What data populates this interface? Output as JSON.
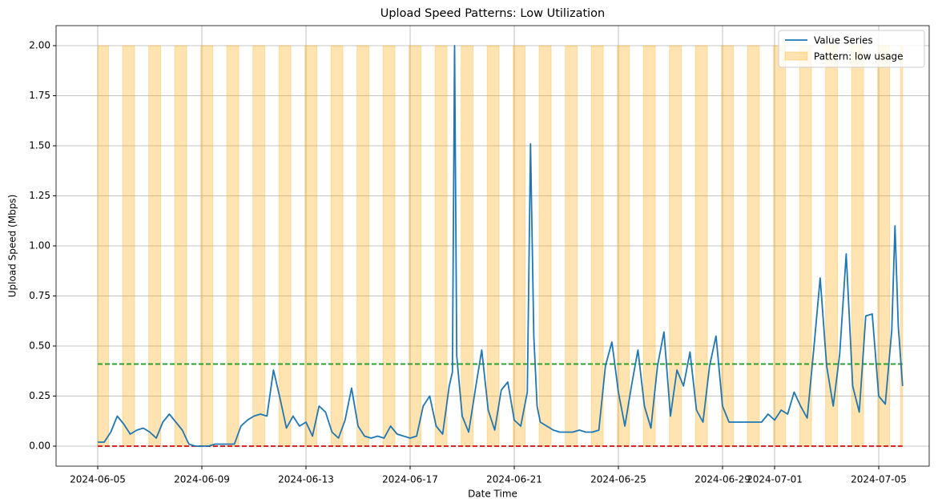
{
  "chart_data": {
    "type": "line",
    "title": "Upload Speed Patterns: Low Utilization",
    "xlabel": "Date Time",
    "ylabel": "Upload Speed (Mbps)",
    "xlim": [
      "2024-06-03T09:36",
      "2024-07-06T22:30"
    ],
    "ylim": [
      -0.1,
      2.1
    ],
    "xticks": [
      "2024-06-05",
      "2024-06-09",
      "2024-06-13",
      "2024-06-17",
      "2024-06-21",
      "2024-06-25",
      "2024-06-29",
      "2024-07-01",
      "2024-07-05"
    ],
    "yticks": [
      {
        "value": 0,
        "label": "0.00"
      },
      {
        "value": 0.25,
        "label": "0.25"
      },
      {
        "value": 0.5,
        "label": "0.50"
      },
      {
        "value": 0.75,
        "label": "0.75"
      },
      {
        "value": 1,
        "label": "1.00"
      },
      {
        "value": 1.25,
        "label": "1.25"
      },
      {
        "value": 1.5,
        "label": "1.50"
      },
      {
        "value": 1.75,
        "label": "1.75"
      },
      {
        "value": 2,
        "label": "2.00"
      }
    ],
    "grid": true,
    "legend": "upper right",
    "series": [
      {
        "name": "Value Series",
        "color": "#1f77b4",
        "x": [
          "2024-06-05T00:00",
          "2024-06-05T06:00",
          "2024-06-05T12:00",
          "2024-06-05T18:00",
          "2024-06-06T00:00",
          "2024-06-06T06:00",
          "2024-06-06T12:00",
          "2024-06-06T18:00",
          "2024-06-07T00:00",
          "2024-06-07T06:00",
          "2024-06-07T12:00",
          "2024-06-07T18:00",
          "2024-06-08T00:00",
          "2024-06-08T06:00",
          "2024-06-08T12:00",
          "2024-06-08T18:00",
          "2024-06-09T00:00",
          "2024-06-09T06:00",
          "2024-06-09T12:00",
          "2024-06-09T18:00",
          "2024-06-10T00:00",
          "2024-06-10T06:00",
          "2024-06-10T12:00",
          "2024-06-10T18:00",
          "2024-06-11T00:00",
          "2024-06-11T06:00",
          "2024-06-11T12:00",
          "2024-06-11T18:00",
          "2024-06-12T00:00",
          "2024-06-12T06:00",
          "2024-06-12T12:00",
          "2024-06-12T18:00",
          "2024-06-13T00:00",
          "2024-06-13T06:00",
          "2024-06-13T12:00",
          "2024-06-13T18:00",
          "2024-06-14T00:00",
          "2024-06-14T06:00",
          "2024-06-14T12:00",
          "2024-06-14T18:00",
          "2024-06-15T00:00",
          "2024-06-15T06:00",
          "2024-06-15T12:00",
          "2024-06-15T18:00",
          "2024-06-16T00:00",
          "2024-06-16T06:00",
          "2024-06-16T12:00",
          "2024-06-16T18:00",
          "2024-06-17T00:00",
          "2024-06-17T06:00",
          "2024-06-17T12:00",
          "2024-06-17T18:00",
          "2024-06-18T00:00",
          "2024-06-18T06:00",
          "2024-06-18T12:00",
          "2024-06-18T15:00",
          "2024-06-18T17:00",
          "2024-06-18T19:00",
          "2024-06-19T00:00",
          "2024-06-19T06:00",
          "2024-06-19T12:00",
          "2024-06-19T18:00",
          "2024-06-20T00:00",
          "2024-06-20T06:00",
          "2024-06-20T12:00",
          "2024-06-20T18:00",
          "2024-06-21T00:00",
          "2024-06-21T06:00",
          "2024-06-21T12:00",
          "2024-06-21T15:00",
          "2024-06-21T18:00",
          "2024-06-21T21:00",
          "2024-06-22T00:00",
          "2024-06-22T06:00",
          "2024-06-22T12:00",
          "2024-06-22T18:00",
          "2024-06-23T00:00",
          "2024-06-23T06:00",
          "2024-06-23T12:00",
          "2024-06-23T18:00",
          "2024-06-24T00:00",
          "2024-06-24T06:00",
          "2024-06-24T12:00",
          "2024-06-24T18:00",
          "2024-06-25T00:00",
          "2024-06-25T06:00",
          "2024-06-25T12:00",
          "2024-06-25T18:00",
          "2024-06-26T00:00",
          "2024-06-26T06:00",
          "2024-06-26T12:00",
          "2024-06-26T18:00",
          "2024-06-27T00:00",
          "2024-06-27T06:00",
          "2024-06-27T12:00",
          "2024-06-27T18:00",
          "2024-06-28T00:00",
          "2024-06-28T06:00",
          "2024-06-28T12:00",
          "2024-06-28T18:00",
          "2024-06-29T00:00",
          "2024-06-29T06:00",
          "2024-06-29T12:00",
          "2024-06-29T18:00",
          "2024-06-30T00:00",
          "2024-06-30T06:00",
          "2024-06-30T12:00",
          "2024-06-30T18:00",
          "2024-07-01T00:00",
          "2024-07-01T06:00",
          "2024-07-01T12:00",
          "2024-07-01T18:00",
          "2024-07-02T00:00",
          "2024-07-02T06:00",
          "2024-07-02T12:00",
          "2024-07-02T18:00",
          "2024-07-03T00:00",
          "2024-07-03T06:00",
          "2024-07-03T12:00",
          "2024-07-03T18:00",
          "2024-07-04T00:00",
          "2024-07-04T06:00",
          "2024-07-04T12:00",
          "2024-07-04T18:00",
          "2024-07-05T00:00",
          "2024-07-05T06:00",
          "2024-07-05T12:00",
          "2024-07-05T15:00",
          "2024-07-05T18:00",
          "2024-07-05T22:00"
        ],
        "values": [
          0.02,
          0.02,
          0.07,
          0.15,
          0.11,
          0.06,
          0.08,
          0.09,
          0.07,
          0.04,
          0.12,
          0.16,
          0.12,
          0.08,
          0.01,
          0.0,
          0.0,
          0.0,
          0.01,
          0.01,
          0.01,
          0.01,
          0.1,
          0.13,
          0.15,
          0.16,
          0.15,
          0.38,
          0.24,
          0.09,
          0.15,
          0.1,
          0.12,
          0.05,
          0.2,
          0.17,
          0.07,
          0.04,
          0.13,
          0.29,
          0.1,
          0.05,
          0.04,
          0.05,
          0.04,
          0.1,
          0.06,
          0.05,
          0.04,
          0.05,
          0.2,
          0.25,
          0.1,
          0.06,
          0.3,
          0.37,
          2.0,
          0.45,
          0.15,
          0.07,
          0.28,
          0.48,
          0.18,
          0.08,
          0.28,
          0.32,
          0.13,
          0.1,
          0.27,
          1.51,
          0.55,
          0.2,
          0.12,
          0.1,
          0.08,
          0.07,
          0.07,
          0.07,
          0.08,
          0.07,
          0.07,
          0.08,
          0.4,
          0.52,
          0.27,
          0.1,
          0.3,
          0.48,
          0.2,
          0.09,
          0.4,
          0.57,
          0.15,
          0.38,
          0.3,
          0.47,
          0.18,
          0.12,
          0.4,
          0.55,
          0.2,
          0.12,
          0.12,
          0.12,
          0.12,
          0.12,
          0.12,
          0.16,
          0.13,
          0.18,
          0.16,
          0.27,
          0.2,
          0.14,
          0.48,
          0.84,
          0.4,
          0.2,
          0.46,
          0.96,
          0.3,
          0.17,
          0.65,
          0.66,
          0.25,
          0.21,
          0.58,
          1.1,
          0.6,
          0.3
        ]
      }
    ],
    "spans": {
      "name": "Pattern: low usage",
      "color": "#ffa500",
      "top": 2.0,
      "ranges": [
        [
          "2024-06-05T00:00",
          "2024-06-05T10:00"
        ],
        [
          "2024-06-05T23:00",
          "2024-06-06T10:00"
        ],
        [
          "2024-06-06T23:00",
          "2024-06-07T10:00"
        ],
        [
          "2024-06-07T23:00",
          "2024-06-08T10:00"
        ],
        [
          "2024-06-08T23:00",
          "2024-06-09T10:00"
        ],
        [
          "2024-06-09T23:00",
          "2024-06-10T10:00"
        ],
        [
          "2024-06-10T23:00",
          "2024-06-11T10:00"
        ],
        [
          "2024-06-11T23:00",
          "2024-06-12T10:00"
        ],
        [
          "2024-06-12T23:00",
          "2024-06-13T10:00"
        ],
        [
          "2024-06-13T23:00",
          "2024-06-14T10:00"
        ],
        [
          "2024-06-14T23:00",
          "2024-06-15T10:00"
        ],
        [
          "2024-06-15T23:00",
          "2024-06-16T10:00"
        ],
        [
          "2024-06-16T23:00",
          "2024-06-17T10:00"
        ],
        [
          "2024-06-17T23:00",
          "2024-06-18T10:00"
        ],
        [
          "2024-06-18T23:00",
          "2024-06-19T10:00"
        ],
        [
          "2024-06-19T23:00",
          "2024-06-20T10:00"
        ],
        [
          "2024-06-20T23:00",
          "2024-06-21T10:00"
        ],
        [
          "2024-06-21T23:00",
          "2024-06-22T10:00"
        ],
        [
          "2024-06-22T23:00",
          "2024-06-23T10:00"
        ],
        [
          "2024-06-23T23:00",
          "2024-06-24T10:00"
        ],
        [
          "2024-06-24T23:00",
          "2024-06-25T10:00"
        ],
        [
          "2024-06-25T23:00",
          "2024-06-26T10:00"
        ],
        [
          "2024-06-26T23:00",
          "2024-06-27T10:00"
        ],
        [
          "2024-06-27T23:00",
          "2024-06-28T10:00"
        ],
        [
          "2024-06-28T23:00",
          "2024-06-29T10:00"
        ],
        [
          "2024-06-29T23:00",
          "2024-06-30T10:00"
        ],
        [
          "2024-06-30T23:00",
          "2024-07-01T10:00"
        ],
        [
          "2024-07-01T23:00",
          "2024-07-02T10:00"
        ],
        [
          "2024-07-02T23:00",
          "2024-07-03T10:00"
        ],
        [
          "2024-07-03T23:00",
          "2024-07-04T10:00"
        ],
        [
          "2024-07-04T23:00",
          "2024-07-05T10:00"
        ],
        [
          "2024-07-05T20:00",
          "2024-07-05T22:00"
        ]
      ]
    },
    "hlines": [
      {
        "value": 0.41,
        "color": "#2ca02c"
      },
      {
        "value": 0,
        "color": "#d62728"
      }
    ]
  }
}
